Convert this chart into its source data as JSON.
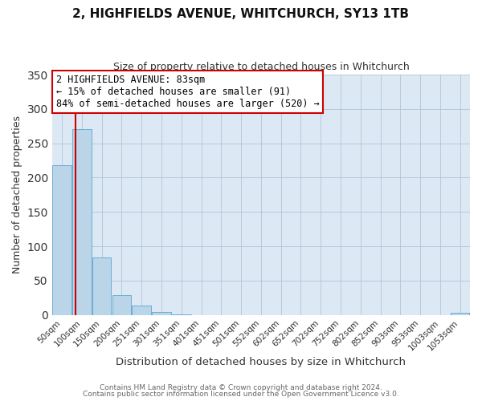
{
  "title": "2, HIGHFIELDS AVENUE, WHITCHURCH, SY13 1TB",
  "subtitle": "Size of property relative to detached houses in Whitchurch",
  "xlabel": "Distribution of detached houses by size in Whitchurch",
  "ylabel": "Number of detached properties",
  "bar_values": [
    218,
    271,
    84,
    29,
    14,
    4,
    1,
    0,
    0,
    0,
    0,
    0,
    0,
    0,
    0,
    0,
    0,
    0,
    0,
    0,
    3
  ],
  "bar_labels": [
    "50sqm",
    "100sqm",
    "150sqm",
    "200sqm",
    "251sqm",
    "301sqm",
    "351sqm",
    "401sqm",
    "451sqm",
    "501sqm",
    "552sqm",
    "602sqm",
    "652sqm",
    "702sqm",
    "752sqm",
    "802sqm",
    "852sqm",
    "903sqm",
    "953sqm",
    "1003sqm",
    "1053sqm"
  ],
  "bar_color": "#bad4e8",
  "bar_edge_color": "#6aaed6",
  "ylim": [
    0,
    350
  ],
  "yticks": [
    0,
    50,
    100,
    150,
    200,
    250,
    300,
    350
  ],
  "vline_color": "#cc0000",
  "annotation_title": "2 HIGHFIELDS AVENUE: 83sqm",
  "annotation_line1": "← 15% of detached houses are smaller (91)",
  "annotation_line2": "84% of semi-detached houses are larger (520) →",
  "annotation_box_color": "#ffffff",
  "annotation_box_edge": "#cc0000",
  "footer1": "Contains HM Land Registry data © Crown copyright and database right 2024.",
  "footer2": "Contains public sector information licensed under the Open Government Licence v3.0.",
  "fig_background": "#ffffff",
  "plot_background": "#dce9f5",
  "grid_color": "#b0c4d8"
}
